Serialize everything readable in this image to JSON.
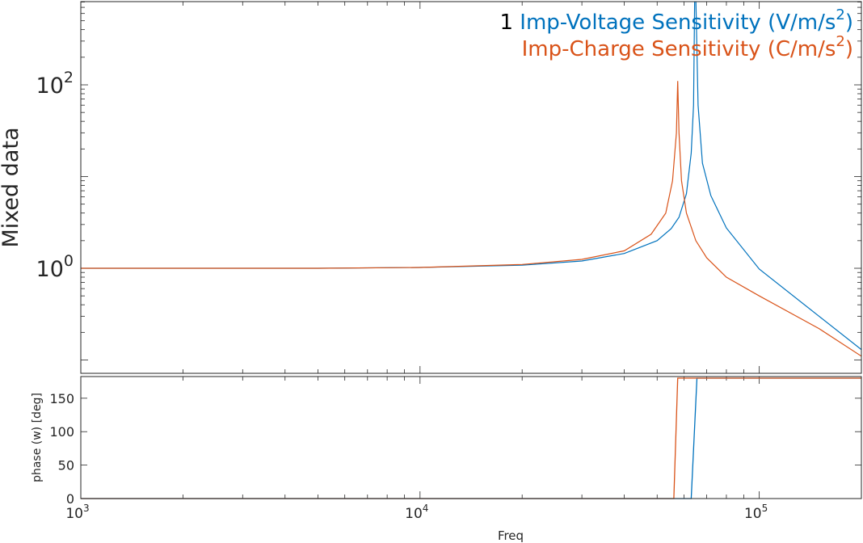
{
  "chart_data": [
    {
      "type": "line",
      "panel": "magnitude",
      "ylabel": "Mixed data",
      "x_scale": "log",
      "y_scale": "log",
      "xlim": [
        1000,
        200000
      ],
      "ylim": [
        0.1,
        900
      ],
      "y_ticks": [
        {
          "value": 1,
          "base": "10",
          "exp": "0"
        },
        {
          "value": 100,
          "base": "10",
          "exp": "2"
        }
      ],
      "legend_prefix": "1",
      "legend_location": "top-right",
      "series": [
        {
          "name": "Imp-Voltage Sensitivity (V/m/s²)",
          "name_main": "Imp-Voltage Sensitivity (V/m/s",
          "name_sup": "2",
          "name_close": ")",
          "color": "#0072BD",
          "x": [
            1000,
            5000,
            10000,
            20000,
            30000,
            40000,
            50000,
            55000,
            58000,
            61000,
            63000,
            64000,
            64500,
            65000,
            66000,
            68000,
            72000,
            80000,
            100000,
            150000,
            200000
          ],
          "y": [
            1.0,
            1.0,
            1.02,
            1.08,
            1.2,
            1.45,
            2.0,
            2.7,
            3.6,
            6.5,
            18,
            60,
            900,
            900,
            60,
            14,
            6.2,
            2.75,
            0.98,
            0.3,
            0.13
          ]
        },
        {
          "name": "Imp-Charge Sensitivity (C/m/s²)",
          "name_main": "Imp-Charge Sensitivity (C/m/s",
          "name_sup": "2",
          "name_close": ")",
          "color": "#D95319",
          "x": [
            1000,
            5000,
            10000,
            20000,
            30000,
            40000,
            48000,
            53000,
            55500,
            57000,
            57500,
            58000,
            59000,
            61000,
            65000,
            70000,
            80000,
            100000,
            150000,
            200000
          ],
          "y": [
            1.0,
            1.0,
            1.02,
            1.1,
            1.25,
            1.55,
            2.35,
            4.0,
            9.0,
            30,
            110,
            30,
            9.0,
            4.0,
            2.0,
            1.3,
            0.8,
            0.5,
            0.22,
            0.11
          ]
        }
      ]
    },
    {
      "type": "line",
      "panel": "phase",
      "xlabel": "Freq",
      "ylabel": "phase (w) [deg]",
      "x_scale": "log",
      "xlim": [
        1000,
        200000
      ],
      "ylim": [
        0,
        180
      ],
      "x_ticks": [
        {
          "value": 1000,
          "base": "10",
          "exp": "3"
        },
        {
          "value": 10000,
          "base": "10",
          "exp": "4"
        },
        {
          "value": 100000,
          "base": "10",
          "exp": "5"
        }
      ],
      "y_ticks": [
        0,
        50,
        100,
        150
      ],
      "series": [
        {
          "color": "#0072BD",
          "x": [
            1000,
            63000,
            65500,
            200000
          ],
          "y": [
            0,
            0,
            180,
            180
          ]
        },
        {
          "color": "#D95319",
          "x": [
            1000,
            56000,
            57500,
            200000
          ],
          "y": [
            0,
            0,
            180,
            180
          ]
        }
      ]
    }
  ]
}
